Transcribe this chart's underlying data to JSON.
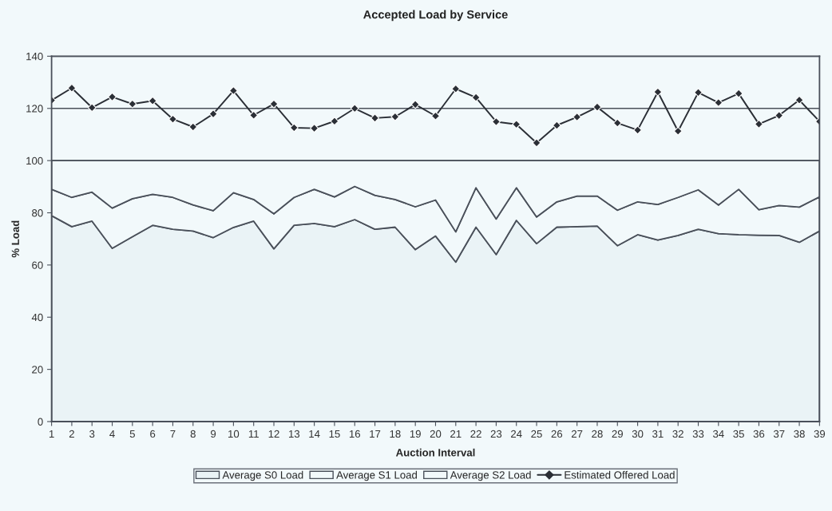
{
  "chart_data": {
    "type": "area",
    "stacked": true,
    "title": "Accepted Load by Service",
    "xlabel": "Auction Interval",
    "ylabel": "% Load",
    "categories": [
      "1",
      "2",
      "3",
      "4",
      "5",
      "6",
      "7",
      "8",
      "9",
      "10",
      "11",
      "12",
      "13",
      "14",
      "15",
      "16",
      "17",
      "18",
      "19",
      "20",
      "21",
      "22",
      "23",
      "24",
      "25",
      "26",
      "27",
      "28",
      "29",
      "30",
      "31",
      "32",
      "33",
      "34",
      "35",
      "36",
      "37",
      "38",
      "39"
    ],
    "series": [
      {
        "name": "Average S0 Load",
        "color": "#eaf3f6",
        "values": [
          78.9,
          74.7,
          76.8,
          66.4,
          70.8,
          75.2,
          73.7,
          73.0,
          70.5,
          74.4,
          76.8,
          66.2,
          75.2,
          75.9,
          74.7,
          77.4,
          73.7,
          74.5,
          65.9,
          71.1,
          61.1,
          74.5,
          64.0,
          77.1,
          68.2,
          74.5,
          74.7,
          74.9,
          67.4,
          71.6,
          69.6,
          71.3,
          73.7,
          72.0,
          71.6,
          71.4,
          71.3,
          68.7,
          73.0
        ]
      },
      {
        "name": "Average S1 Load",
        "color": "#f2f9fb",
        "values": [
          10.1,
          11.2,
          11.1,
          15.4,
          14.6,
          11.9,
          12.2,
          10.0,
          10.3,
          13.3,
          8.3,
          13.4,
          10.7,
          13.1,
          11.4,
          12.7,
          13.0,
          10.6,
          16.4,
          13.8,
          11.6,
          15.1,
          13.6,
          12.5,
          10.2,
          9.7,
          11.7,
          11.5,
          13.6,
          12.6,
          13.6,
          14.6,
          15.1,
          11.0,
          17.4,
          9.8,
          11.5,
          13.5,
          13.1
        ]
      },
      {
        "name": "Average S2 Load",
        "color": "#f2f9fb",
        "values": [
          11.0,
          14.1,
          12.1,
          18.2,
          14.6,
          12.9,
          14.1,
          17.0,
          19.2,
          12.3,
          14.9,
          20.4,
          14.1,
          11.0,
          13.9,
          9.9,
          13.3,
          14.9,
          17.7,
          15.1,
          27.3,
          10.4,
          22.4,
          10.4,
          21.6,
          15.8,
          13.6,
          13.6,
          19.0,
          15.8,
          16.8,
          14.1,
          11.2,
          17.0,
          11.0,
          18.8,
          17.2,
          17.8,
          13.9
        ]
      },
      {
        "name": "Estimated Offered Load",
        "type": "line",
        "marker": "diamond",
        "color": "#2b2f36",
        "values": [
          123.1,
          127.8,
          120.3,
          124.4,
          121.7,
          122.9,
          115.9,
          112.9,
          117.9,
          126.8,
          117.4,
          121.7,
          112.6,
          112.4,
          115.1,
          120.0,
          116.3,
          116.8,
          121.5,
          117.1,
          127.5,
          124.2,
          114.9,
          113.9,
          106.8,
          113.5,
          116.7,
          120.5,
          114.4,
          111.7,
          126.3,
          111.3,
          126.1,
          122.2,
          125.7,
          114.0,
          117.3,
          123.2,
          115.0
        ]
      }
    ],
    "ylim": [
      0,
      140
    ],
    "yticks": [
      0,
      20,
      40,
      60,
      80,
      100,
      120,
      140
    ],
    "grid": "y",
    "legend": "bottom"
  }
}
